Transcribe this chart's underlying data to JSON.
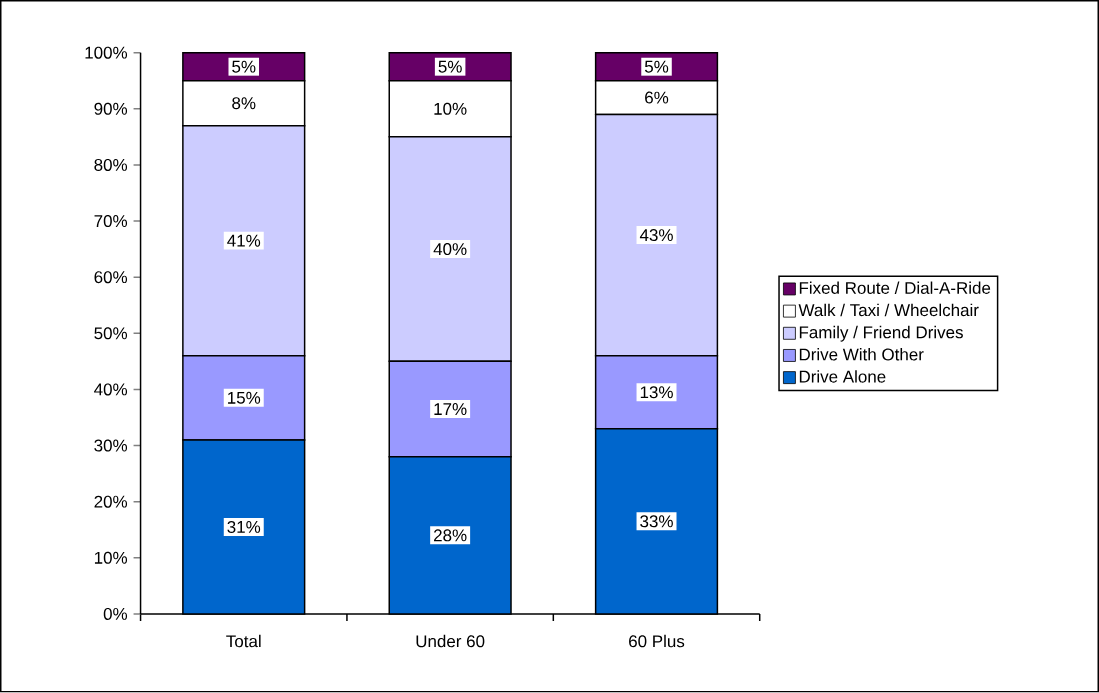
{
  "chart_data": {
    "type": "bar",
    "stacked": true,
    "categories": [
      "Total",
      "Under 60",
      "60 Plus"
    ],
    "series": [
      {
        "name": "Drive Alone",
        "color": "#0066cc",
        "values": [
          31,
          28,
          33
        ],
        "value_labels": [
          "31%",
          "28%",
          "33%"
        ]
      },
      {
        "name": "Drive With Other",
        "color": "#9999ff",
        "values": [
          15,
          17,
          13
        ],
        "value_labels": [
          "15%",
          "17%",
          "13%"
        ]
      },
      {
        "name": "Family / Friend Drives",
        "color": "#ccccff",
        "values": [
          41,
          40,
          43
        ],
        "value_labels": [
          "41%",
          "40%",
          "43%"
        ]
      },
      {
        "name": "Walk / Taxi / Wheelchair",
        "color": "#ffffff",
        "values": [
          8,
          10,
          6
        ],
        "value_labels": [
          "8%",
          "10%",
          "6%"
        ]
      },
      {
        "name": "Fixed Route / Dial-A-Ride",
        "color": "#660066",
        "values": [
          5,
          5,
          5
        ],
        "value_labels": [
          "5%",
          "5%",
          "5%"
        ]
      }
    ],
    "ylim": [
      0,
      100
    ],
    "yticks": [
      {
        "value": 0,
        "label": "0%"
      },
      {
        "value": 10,
        "label": "10%"
      },
      {
        "value": 20,
        "label": "20%"
      },
      {
        "value": 30,
        "label": "30%"
      },
      {
        "value": 40,
        "label": "40%"
      },
      {
        "value": 50,
        "label": "50%"
      },
      {
        "value": 60,
        "label": "60%"
      },
      {
        "value": 70,
        "label": "70%"
      },
      {
        "value": 80,
        "label": "80%"
      },
      {
        "value": 90,
        "label": "90%"
      },
      {
        "value": 100,
        "label": "100%"
      }
    ],
    "legend": "right"
  }
}
